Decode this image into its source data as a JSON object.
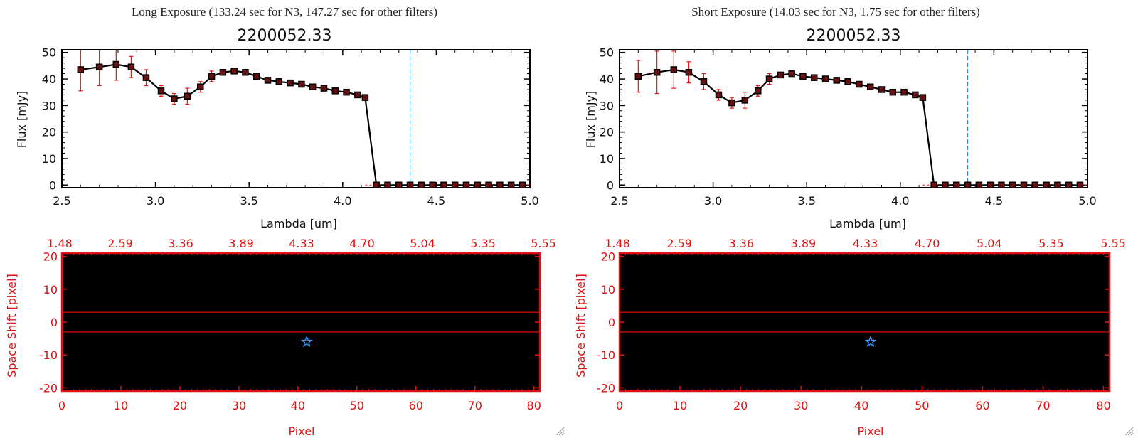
{
  "colors": {
    "axis": "#000000",
    "line": "#000000",
    "marker": "#000000",
    "marker_fill": "#661111",
    "error_bar": "#ee1111",
    "cutoff_line": "#3388ee",
    "image_axis": "#dd1111",
    "aperture_line": "#dd1111",
    "star_marker": "#3399ff"
  },
  "icons": {
    "star": "star-marker-icon",
    "resize": "resize-grip-icon"
  },
  "panels": [
    {
      "heading": "Long Exposure (133.24 sec for N3, 147.27 sec for other filters)",
      "plot_title": "2200052.33",
      "xlabel": "Lambda [um]",
      "ylabel": "Flux [mJy]",
      "image_xlabel": "Pixel",
      "image_ylabel": "Space Shift [pixel]"
    },
    {
      "heading": "Short Exposure (14.03 sec for N3, 1.75 sec for other filters)",
      "plot_title": "2200052.33",
      "xlabel": "Lambda [um]",
      "ylabel": "Flux [mJy]",
      "image_xlabel": "Pixel",
      "image_ylabel": "Space Shift [pixel]"
    }
  ],
  "chart_data": [
    {
      "type": "line",
      "title": "2200052.33",
      "xlabel": "Lambda [um]",
      "ylabel": "Flux [mJy]",
      "xlim": [
        2.5,
        5.0
      ],
      "ylim": [
        -1,
        51
      ],
      "x_ticks": [
        "2.5",
        "3.0",
        "3.5",
        "4.0",
        "4.5",
        "5.0"
      ],
      "y_ticks": [
        "0",
        "10",
        "20",
        "30",
        "40",
        "50"
      ],
      "grid": false,
      "x": [
        2.6,
        2.7,
        2.79,
        2.87,
        2.95,
        3.03,
        3.1,
        3.17,
        3.24,
        3.3,
        3.36,
        3.42,
        3.48,
        3.54,
        3.6,
        3.66,
        3.72,
        3.78,
        3.84,
        3.9,
        3.96,
        4.02,
        4.08,
        4.12,
        4.18,
        4.24,
        4.3,
        4.36,
        4.42,
        4.48,
        4.54,
        4.6,
        4.66,
        4.72,
        4.78,
        4.84,
        4.9,
        4.96
      ],
      "y": [
        43.5,
        44.5,
        45.5,
        44.5,
        40.5,
        35.5,
        32.5,
        33.5,
        37,
        41,
        42.5,
        43,
        42.5,
        41,
        39.5,
        39,
        38.5,
        38,
        37,
        36.5,
        35.5,
        35,
        34,
        33,
        0,
        0,
        0,
        0,
        0,
        0,
        0,
        0,
        0,
        0,
        0,
        0,
        0,
        0
      ],
      "error": [
        8,
        7,
        6,
        4,
        3,
        2,
        2,
        3,
        2,
        2,
        1,
        1,
        0.5,
        0.5,
        0.5,
        0.5,
        0.5,
        0.5,
        0.5,
        0.5,
        0.5,
        0.5,
        0.5,
        0.5,
        0,
        0,
        0,
        0,
        0,
        0,
        0,
        0,
        0,
        0,
        0,
        0,
        0,
        0
      ],
      "cutoff_x": 4.36,
      "image": {
        "type": "heatmap",
        "xlabel": "Pixel",
        "ylabel": "Space Shift [pixel]",
        "xlim": [
          0,
          81
        ],
        "ylim": [
          -21,
          21
        ],
        "x_ticks": [
          "0",
          "10",
          "20",
          "30",
          "40",
          "50",
          "60",
          "70",
          "80"
        ],
        "y_ticks": [
          "-20",
          "-10",
          "0",
          "10",
          "20"
        ],
        "top_ticks": [
          "1.48",
          "2.59",
          "3.36",
          "3.89",
          "4.33",
          "4.70",
          "5.04",
          "5.35",
          "5.55"
        ],
        "aperture": [
          -3,
          3
        ],
        "star_marker": {
          "x": 41.5,
          "y": -6
        }
      }
    },
    {
      "type": "line",
      "title": "2200052.33",
      "xlabel": "Lambda [um]",
      "ylabel": "Flux [mJy]",
      "xlim": [
        2.5,
        5.0
      ],
      "ylim": [
        -1,
        51
      ],
      "x_ticks": [
        "2.5",
        "3.0",
        "3.5",
        "4.0",
        "4.5",
        "5.0"
      ],
      "y_ticks": [
        "0",
        "10",
        "20",
        "30",
        "40",
        "50"
      ],
      "grid": false,
      "x": [
        2.6,
        2.7,
        2.79,
        2.87,
        2.95,
        3.03,
        3.1,
        3.17,
        3.24,
        3.3,
        3.36,
        3.42,
        3.48,
        3.54,
        3.6,
        3.66,
        3.72,
        3.78,
        3.84,
        3.9,
        3.96,
        4.02,
        4.08,
        4.12,
        4.18,
        4.24,
        4.3,
        4.36,
        4.42,
        4.48,
        4.54,
        4.6,
        4.66,
        4.72,
        4.78,
        4.84,
        4.9,
        4.96
      ],
      "y": [
        41,
        42.5,
        43.5,
        42.5,
        39,
        34,
        31,
        32,
        35.5,
        40,
        41.5,
        42,
        41,
        40.5,
        40,
        39.5,
        39,
        38,
        37,
        36,
        35,
        35,
        34,
        33,
        0,
        0,
        0,
        0,
        0,
        0,
        0,
        0,
        0,
        0,
        0,
        0,
        0,
        0
      ],
      "error": [
        6,
        8,
        7,
        4,
        3,
        2,
        2,
        3,
        2,
        2,
        1,
        1,
        0.5,
        0.5,
        0.5,
        0.5,
        0.5,
        0.5,
        0.5,
        0.5,
        0.5,
        0.5,
        0.5,
        0.5,
        0,
        0,
        0,
        0,
        0,
        0,
        0,
        0,
        0,
        0,
        0,
        0,
        0,
        0
      ],
      "cutoff_x": 4.36,
      "image": {
        "type": "heatmap",
        "xlabel": "Pixel",
        "ylabel": "Space Shift [pixel]",
        "xlim": [
          0,
          81
        ],
        "ylim": [
          -21,
          21
        ],
        "x_ticks": [
          "0",
          "10",
          "20",
          "30",
          "40",
          "50",
          "60",
          "70",
          "80"
        ],
        "y_ticks": [
          "-20",
          "-10",
          "0",
          "10",
          "20"
        ],
        "top_ticks": [
          "1.48",
          "2.59",
          "3.36",
          "3.89",
          "4.33",
          "4.70",
          "5.04",
          "5.35",
          "5.55"
        ],
        "aperture": [
          -3,
          3
        ],
        "star_marker": {
          "x": 41.5,
          "y": -6
        }
      }
    }
  ]
}
